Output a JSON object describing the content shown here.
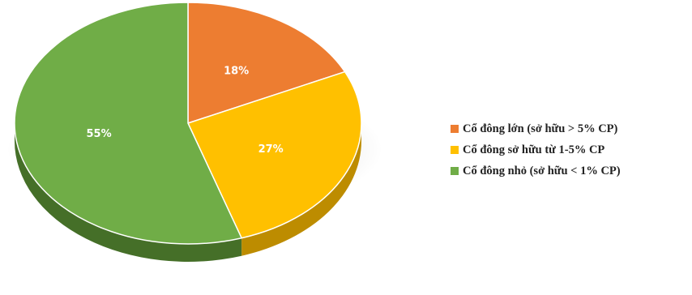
{
  "chart_data": {
    "type": "pie",
    "style": "3d",
    "title": "",
    "slices": [
      {
        "label": "Cổ đông lớn (sở hữu > 5% CP)",
        "value": 18,
        "display": "18%",
        "color": "#ED7D31",
        "side_color": "#B25418"
      },
      {
        "label": "Cổ đông sở hữu từ 1-5% CP",
        "value": 27,
        "display": "27%",
        "color": "#FFC000",
        "side_color": "#BD8C00"
      },
      {
        "label": "Cổ đông nhỏ (sở hữu < 1% CP)",
        "value": 55,
        "display": "55%",
        "color": "#70AD47",
        "side_color": "#456F28"
      }
    ],
    "legend_position": "right"
  }
}
